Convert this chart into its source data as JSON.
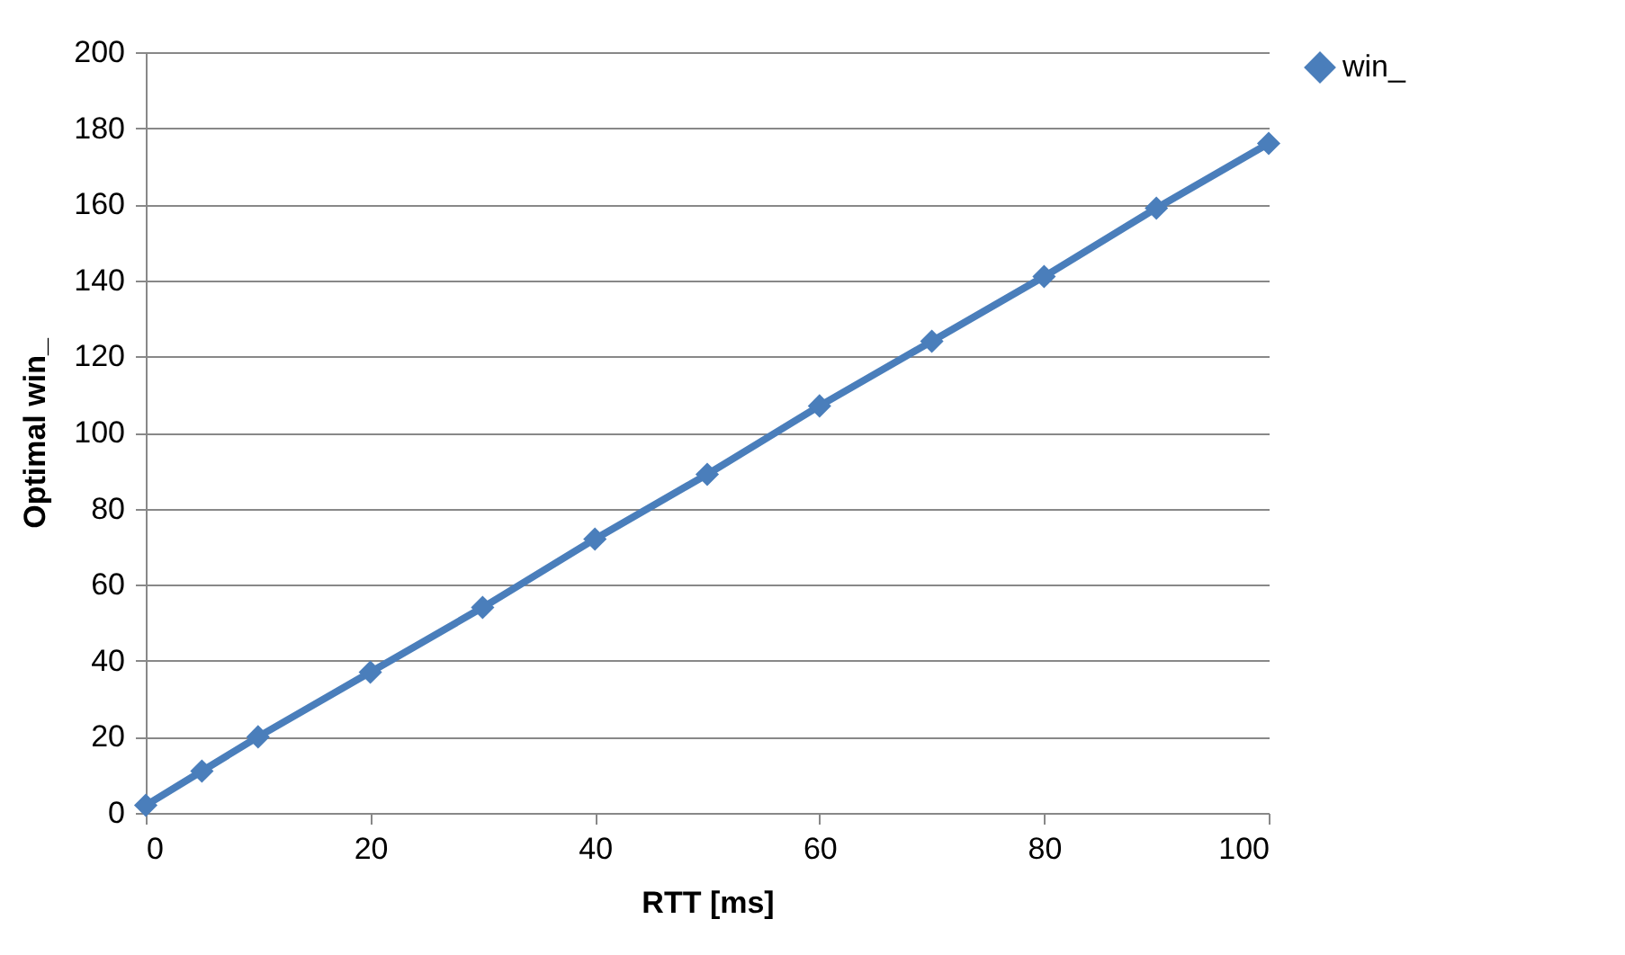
{
  "chart_data": {
    "type": "line",
    "xlabel": "RTT [ms]",
    "ylabel": "Optimal win_",
    "x": [
      0,
      5,
      10,
      20,
      30,
      40,
      50,
      60,
      70,
      80,
      90,
      100
    ],
    "series": [
      {
        "name": "win_",
        "color": "#4a7ebb",
        "values": [
          2,
          11,
          20,
          37,
          54,
          72,
          89,
          107,
          124,
          141,
          159,
          176
        ]
      }
    ],
    "xlim": [
      0,
      100
    ],
    "xticks": [
      0,
      20,
      40,
      60,
      80,
      100
    ],
    "ylim": [
      0,
      200
    ],
    "yticks": [
      0,
      20,
      40,
      60,
      80,
      100,
      120,
      140,
      160,
      180,
      200
    ],
    "grid": "y",
    "legend": "right",
    "marker": "diamond",
    "line_style": "solid"
  }
}
